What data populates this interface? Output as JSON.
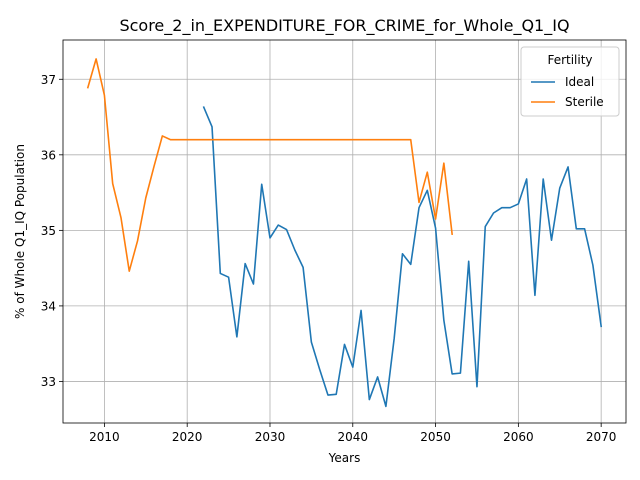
{
  "chart_data": {
    "type": "line",
    "title": "Score_2_in_EXPENDITURE_FOR_CRIME_for_Whole_Q1_IQ",
    "xlabel": "Years",
    "ylabel": "% of Whole Q1_IQ Population",
    "xlim": [
      2005,
      2073
    ],
    "ylim": [
      32.45,
      37.52
    ],
    "xticks": [
      2010,
      2020,
      2030,
      2040,
      2050,
      2060,
      2070
    ],
    "yticks": [
      33,
      34,
      35,
      36,
      37
    ],
    "grid": true,
    "legend": {
      "title": "Fertility",
      "position": "top-right"
    },
    "series": [
      {
        "name": "Ideal",
        "color": "#1f77b4",
        "x": [
          2022,
          2023,
          2024,
          2025,
          2026,
          2027,
          2028,
          2029,
          2030,
          2031,
          2032,
          2033,
          2034,
          2035,
          2036,
          2037,
          2038,
          2039,
          2040,
          2041,
          2042,
          2043,
          2044,
          2045,
          2046,
          2047,
          2048,
          2049,
          2050,
          2051,
          2052,
          2053,
          2054,
          2055,
          2056,
          2057,
          2058,
          2059,
          2060,
          2061,
          2062,
          2063,
          2064,
          2065,
          2066,
          2067,
          2068,
          2069,
          2070
        ],
        "y": [
          36.63,
          36.37,
          34.43,
          34.38,
          33.59,
          34.56,
          34.29,
          35.61,
          34.9,
          35.07,
          35.01,
          34.74,
          34.51,
          33.52,
          33.16,
          32.82,
          32.83,
          33.49,
          33.19,
          33.94,
          32.76,
          33.06,
          32.67,
          33.57,
          34.69,
          34.55,
          35.3,
          35.53,
          35.03,
          33.81,
          33.1,
          33.11,
          34.59,
          32.93,
          35.05,
          35.23,
          35.3,
          35.3,
          35.35,
          35.68,
          34.14,
          35.68,
          34.87,
          35.56,
          35.84,
          35.02,
          35.02,
          34.54,
          33.73
        ]
      },
      {
        "name": "Sterile",
        "color": "#ff7f0e",
        "x": [
          2008,
          2009,
          2010,
          2011,
          2012,
          2013,
          2014,
          2015,
          2016,
          2017,
          2018,
          2019,
          2020,
          2021,
          2022,
          2023,
          2024,
          2025,
          2026,
          2027,
          2028,
          2029,
          2030,
          2031,
          2032,
          2033,
          2034,
          2035,
          2036,
          2037,
          2038,
          2039,
          2040,
          2041,
          2042,
          2043,
          2044,
          2045,
          2046,
          2047,
          2048,
          2049,
          2050,
          2051,
          2052
        ],
        "y": [
          36.89,
          37.27,
          36.79,
          35.62,
          35.17,
          34.46,
          34.86,
          35.43,
          35.85,
          36.25,
          36.2,
          36.2,
          36.2,
          36.2,
          36.2,
          36.2,
          36.2,
          36.2,
          36.2,
          36.2,
          36.2,
          36.2,
          36.2,
          36.2,
          36.2,
          36.2,
          36.2,
          36.2,
          36.2,
          36.2,
          36.2,
          36.2,
          36.2,
          36.2,
          36.2,
          36.2,
          36.2,
          36.2,
          36.2,
          36.2,
          35.37,
          35.77,
          35.15,
          35.89,
          34.95
        ]
      }
    ]
  }
}
